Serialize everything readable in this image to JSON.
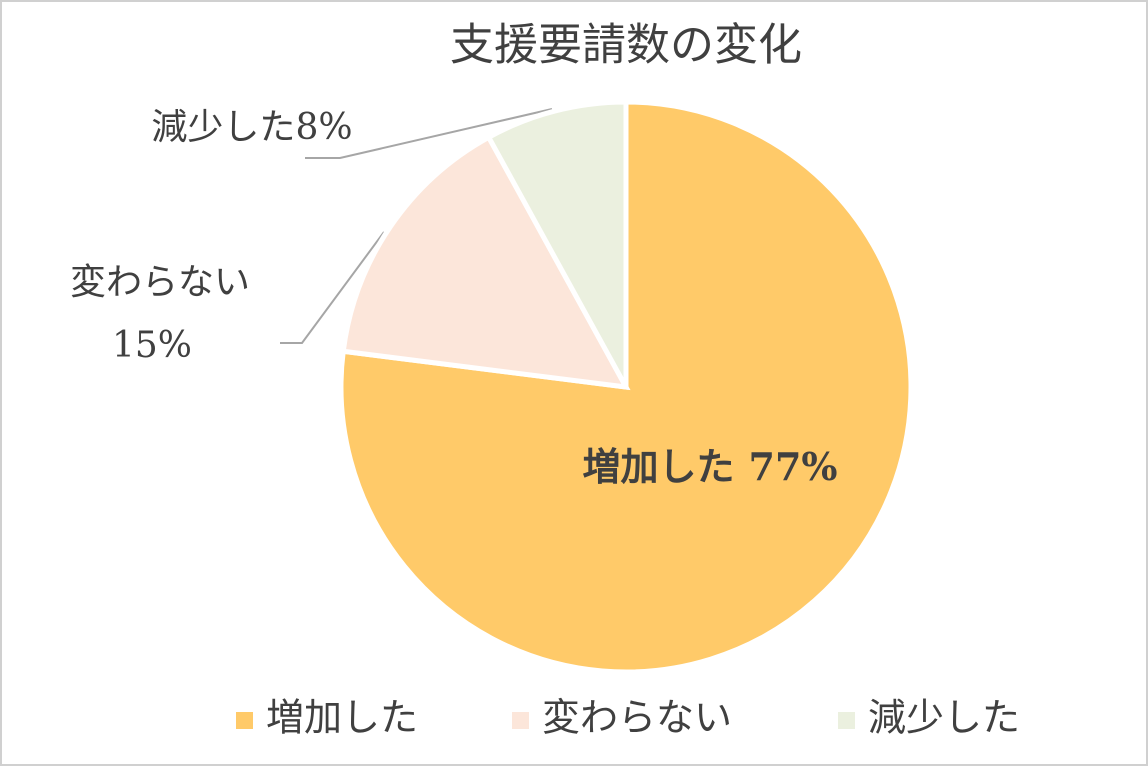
{
  "chart_data": {
    "type": "pie",
    "title": "支援要請数の変化",
    "categories": [
      "増加した",
      "変わらない",
      "減少した"
    ],
    "values": [
      77,
      15,
      8
    ],
    "value_labels": [
      "77%",
      "15%",
      "8%"
    ],
    "colors": [
      "#ffca69",
      "#fce6da",
      "#ebf0df"
    ],
    "legend": "bottom"
  }
}
